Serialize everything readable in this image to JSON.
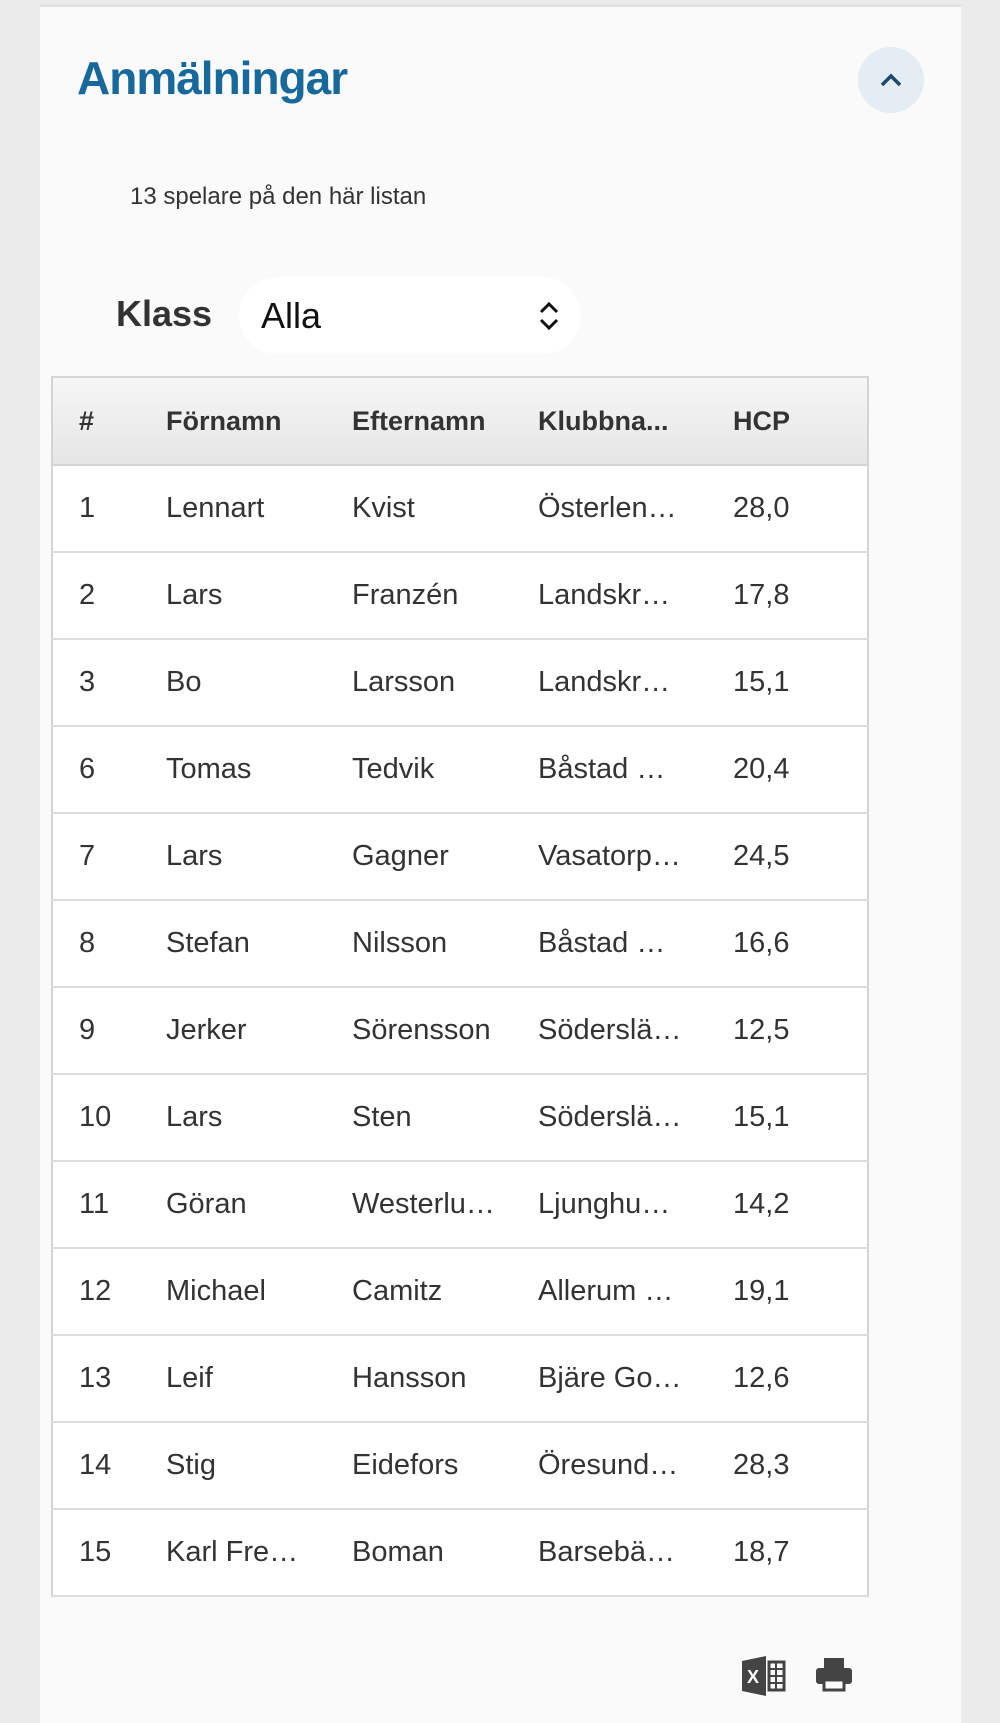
{
  "header": {
    "title": "Anmälningar",
    "toggle_icon": "chevron-up-icon"
  },
  "summary": "13 spelare på den här listan",
  "filter": {
    "label": "Klass",
    "selected": "Alla"
  },
  "table": {
    "headers": [
      "#",
      "Förnamn",
      "Efternamn",
      "Klubbna...",
      "HCP"
    ],
    "rows": [
      [
        "1",
        "Lennart",
        "Kvist",
        "Österlen…",
        "28,0"
      ],
      [
        "2",
        "Lars",
        "Franzén",
        "Landskr…",
        "17,8"
      ],
      [
        "3",
        "Bo",
        "Larsson",
        "Landskr…",
        "15,1"
      ],
      [
        "6",
        "Tomas",
        "Tedvik",
        "Båstad …",
        "20,4"
      ],
      [
        "7",
        "Lars",
        "Gagner",
        "Vasatorp…",
        "24,5"
      ],
      [
        "8",
        "Stefan",
        "Nilsson",
        "Båstad …",
        "16,6"
      ],
      [
        "9",
        "Jerker",
        "Sörensson",
        "Söderslä…",
        "12,5"
      ],
      [
        "10",
        "Lars",
        "Sten",
        "Söderslä…",
        "15,1"
      ],
      [
        "11",
        "Göran",
        "Westerlu…",
        "Ljunghu…",
        "14,2"
      ],
      [
        "12",
        "Michael",
        "Camitz",
        "Allerum …",
        "19,1"
      ],
      [
        "13",
        "Leif",
        "Hansson",
        "Bjäre Go…",
        "12,6"
      ],
      [
        "14",
        "Stig",
        "Eidefors",
        "Öresund…",
        "28,3"
      ],
      [
        "15",
        "Karl Fre…",
        "Boman",
        "Barsebä…",
        "18,7"
      ]
    ]
  },
  "actions": {
    "excel_icon": "excel-export-icon",
    "print_icon": "print-icon"
  },
  "colors": {
    "title": "#17699b",
    "background": "#ebebeb",
    "card": "#fafafa"
  }
}
